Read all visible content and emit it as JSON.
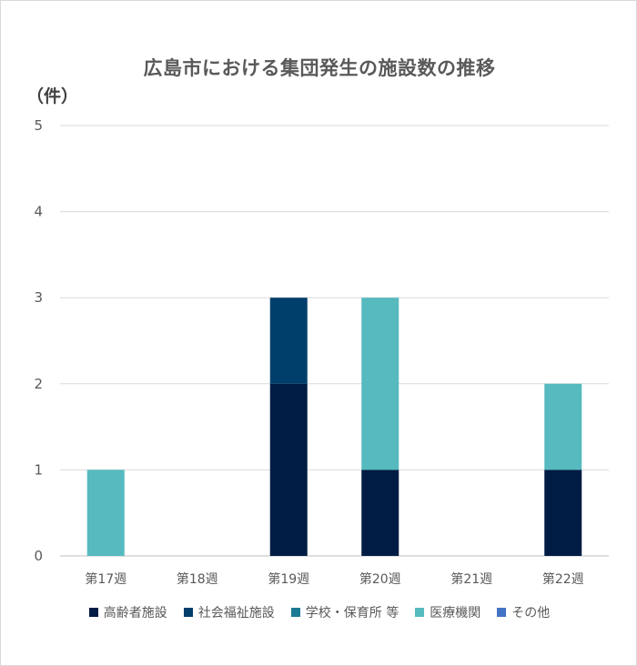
{
  "chart_data": {
    "type": "bar",
    "stacked": true,
    "title": "広島市における集団発生の施設数の推移",
    "ylabel": "（件）",
    "xlabel": "",
    "ylim": [
      0,
      5
    ],
    "yticks": [
      0,
      1,
      2,
      3,
      4,
      5
    ],
    "grid": true,
    "legend_position": "bottom",
    "categories": [
      "第17週",
      "第18週",
      "第19週",
      "第20週",
      "第21週",
      "第22週"
    ],
    "series": [
      {
        "name": "高齢者施設",
        "color": "#001c44",
        "values": [
          0,
          0,
          2,
          1,
          0,
          1
        ]
      },
      {
        "name": "社会福祉施設",
        "color": "#003f6b",
        "values": [
          0,
          0,
          1,
          0,
          0,
          0
        ]
      },
      {
        "name": "学校・保育所 等",
        "color": "#1b7a93",
        "values": [
          0,
          0,
          0,
          0,
          0,
          0
        ]
      },
      {
        "name": "医療機関",
        "color": "#56babf",
        "values": [
          1,
          0,
          0,
          2,
          0,
          1
        ]
      },
      {
        "name": "その他",
        "color": "#4472c4",
        "values": [
          0,
          0,
          0,
          0,
          0,
          0
        ]
      }
    ]
  }
}
